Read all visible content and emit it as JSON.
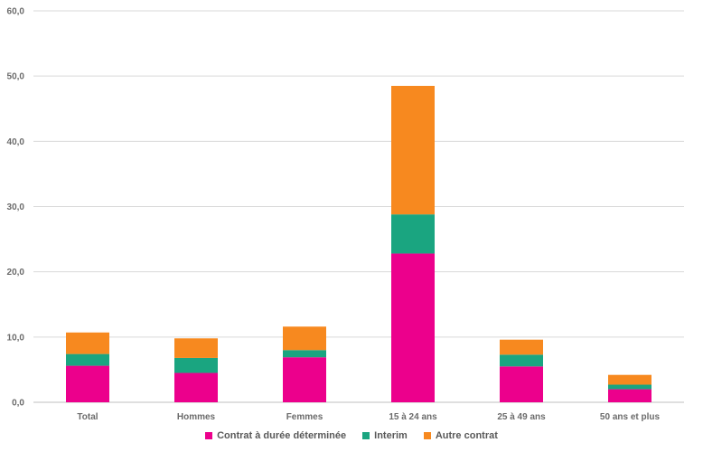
{
  "chart_data": {
    "type": "bar",
    "stacked": true,
    "categories": [
      "Total",
      "Hommes",
      "Femmes",
      "15 à 24 ans",
      "25 à 49 ans",
      "50 ans et plus"
    ],
    "series": [
      {
        "name": "Contrat à durée déterminée",
        "color": "#ec008c",
        "values": [
          5.6,
          4.5,
          6.9,
          22.8,
          5.5,
          2.0
        ]
      },
      {
        "name": "Interim",
        "color": "#1aa580",
        "values": [
          1.8,
          2.3,
          1.1,
          6.0,
          1.8,
          0.7
        ]
      },
      {
        "name": "Autre contrat",
        "color": "#f7891f",
        "values": [
          3.3,
          3.0,
          3.6,
          19.7,
          2.3,
          1.5
        ]
      }
    ],
    "ylim": [
      0,
      60
    ],
    "yticks": [
      "0,0",
      "10,0",
      "20,0",
      "30,0",
      "40,0",
      "50,0",
      "60,0"
    ],
    "grid": true,
    "legend_position": "bottom",
    "title": "",
    "xlabel": "",
    "ylabel": ""
  }
}
